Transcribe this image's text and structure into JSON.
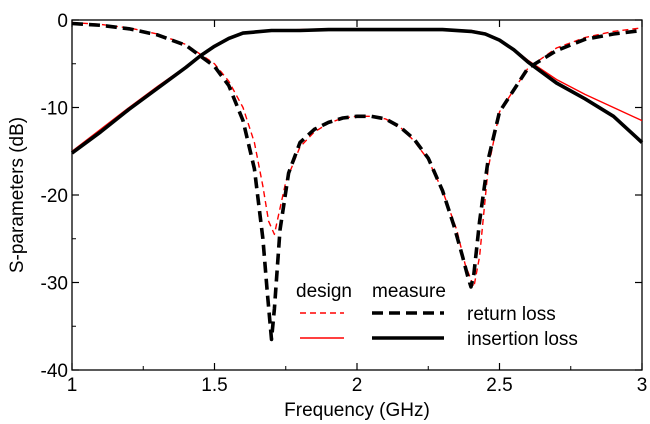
{
  "chart_data": {
    "type": "line",
    "xlabel": "Frequency (GHz)",
    "ylabel": "S-parameters (dB)",
    "xlim": [
      1,
      3
    ],
    "ylim": [
      -40,
      0
    ],
    "xticks": [
      1,
      1.5,
      2,
      2.5,
      3
    ],
    "xtick_labels": [
      "1",
      "1.5",
      "2",
      "2.5",
      "3"
    ],
    "yticks": [
      0,
      -10,
      -20,
      -30,
      -40
    ],
    "ytick_labels": [
      "0",
      "-10",
      "-20",
      "-30",
      "-40"
    ],
    "grid": false,
    "legend": {
      "position": "bottom-center",
      "column_headers": [
        "design",
        "measure"
      ],
      "rows": [
        "return loss",
        "insertion loss"
      ]
    },
    "colors": {
      "design": "#ff0000",
      "measure": "#000000"
    },
    "series": [
      {
        "key": "design_return",
        "group": "design",
        "row": "return loss",
        "color": "#ff0000",
        "dash": "dashed",
        "x": [
          1.0,
          1.1,
          1.2,
          1.3,
          1.4,
          1.5,
          1.55,
          1.6,
          1.64,
          1.67,
          1.69,
          1.71,
          1.72,
          1.75,
          1.8,
          1.85,
          1.9,
          1.95,
          2.0,
          2.05,
          2.1,
          2.15,
          2.2,
          2.25,
          2.3,
          2.35,
          2.38,
          2.41,
          2.43,
          2.46,
          2.5,
          2.6,
          2.7,
          2.8,
          2.9,
          3.0
        ],
        "y": [
          -0.3,
          -0.5,
          -0.9,
          -1.6,
          -2.8,
          -5.0,
          -7.0,
          -10.0,
          -14.0,
          -19.0,
          -23.0,
          -24.5,
          -23.0,
          -18.5,
          -14.5,
          -12.8,
          -11.8,
          -11.2,
          -11.0,
          -11.0,
          -11.3,
          -12.2,
          -13.8,
          -16.0,
          -19.5,
          -24.0,
          -28.0,
          -30.5,
          -27.0,
          -17.0,
          -10.5,
          -5.5,
          -3.2,
          -2.0,
          -1.3,
          -0.9
        ]
      },
      {
        "key": "design_insertion",
        "group": "design",
        "row": "insertion loss",
        "color": "#ff0000",
        "dash": "solid",
        "x": [
          1.0,
          1.1,
          1.2,
          1.3,
          1.4,
          1.45,
          1.5,
          1.55,
          1.6,
          1.7,
          1.8,
          1.9,
          2.0,
          2.1,
          2.2,
          2.3,
          2.4,
          2.45,
          2.5,
          2.55,
          2.6,
          2.7,
          2.8,
          2.9,
          3.0
        ],
        "y": [
          -15.0,
          -12.5,
          -10.0,
          -7.6,
          -5.3,
          -4.0,
          -2.9,
          -2.0,
          -1.5,
          -1.2,
          -1.1,
          -1.0,
          -1.0,
          -1.0,
          -1.0,
          -1.05,
          -1.2,
          -1.5,
          -2.2,
          -3.3,
          -4.6,
          -6.8,
          -8.5,
          -10.0,
          -11.5
        ]
      },
      {
        "key": "measure_return",
        "group": "measure",
        "row": "return loss",
        "color": "#000000",
        "dash": "dashed",
        "x": [
          1.0,
          1.1,
          1.2,
          1.3,
          1.4,
          1.5,
          1.55,
          1.6,
          1.64,
          1.67,
          1.685,
          1.7,
          1.71,
          1.73,
          1.76,
          1.8,
          1.85,
          1.9,
          1.95,
          2.0,
          2.05,
          2.1,
          2.15,
          2.2,
          2.25,
          2.3,
          2.34,
          2.37,
          2.39,
          2.4,
          2.41,
          2.43,
          2.46,
          2.5,
          2.6,
          2.7,
          2.8,
          2.9,
          3.0
        ],
        "y": [
          -0.4,
          -0.6,
          -1.0,
          -1.7,
          -2.9,
          -5.3,
          -7.5,
          -11.5,
          -17.0,
          -25.0,
          -31.0,
          -36.5,
          -33.0,
          -24.0,
          -17.5,
          -14.0,
          -12.5,
          -11.7,
          -11.2,
          -11.0,
          -11.0,
          -11.3,
          -12.2,
          -13.6,
          -15.8,
          -19.5,
          -23.5,
          -27.0,
          -29.5,
          -30.5,
          -29.0,
          -23.0,
          -16.0,
          -10.5,
          -5.5,
          -3.5,
          -2.2,
          -1.6,
          -1.2
        ]
      },
      {
        "key": "measure_insertion",
        "group": "measure",
        "row": "insertion loss",
        "color": "#000000",
        "dash": "solid",
        "x": [
          1.0,
          1.1,
          1.2,
          1.3,
          1.4,
          1.45,
          1.5,
          1.55,
          1.6,
          1.7,
          1.8,
          1.9,
          2.0,
          2.1,
          2.2,
          2.3,
          2.4,
          2.45,
          2.5,
          2.55,
          2.6,
          2.7,
          2.8,
          2.9,
          3.0
        ],
        "y": [
          -15.2,
          -12.8,
          -10.2,
          -7.8,
          -5.4,
          -4.1,
          -3.0,
          -2.1,
          -1.5,
          -1.2,
          -1.2,
          -1.1,
          -1.1,
          -1.1,
          -1.1,
          -1.1,
          -1.3,
          -1.6,
          -2.3,
          -3.4,
          -4.8,
          -7.2,
          -9.0,
          -11.0,
          -14.0
        ]
      }
    ]
  }
}
